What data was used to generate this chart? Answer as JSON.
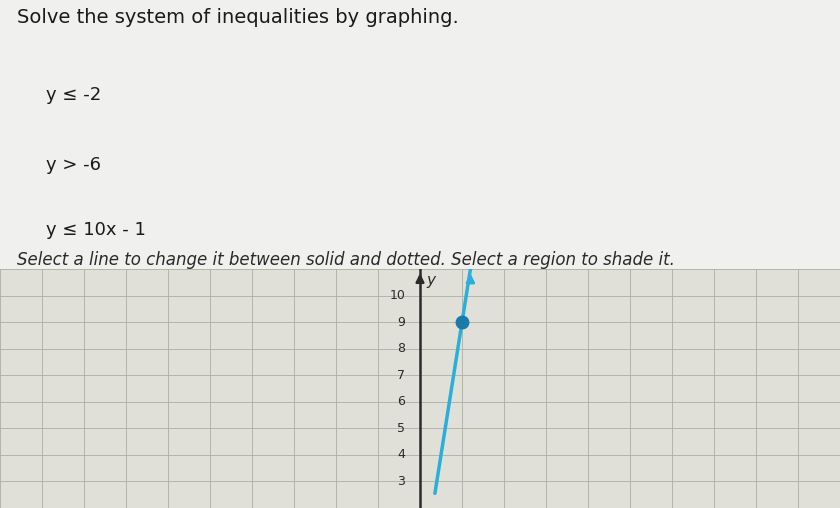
{
  "title": "Solve the system of inequalities by graphing.",
  "inequalities": [
    "y ≤ -2",
    "y > -6",
    "y ≤ 10x - 1"
  ],
  "instruction": "Select a line to change it between solid and dotted. Select a region to shade it.",
  "bg_color": "#f0f0ee",
  "plot_bg": "#e0e0d8",
  "grid_color": "#b0b0a8",
  "axis_color": "#2a2a2a",
  "line_color": "#2ab0d8",
  "dot_color": "#1a7aaa",
  "dot_x": 1,
  "dot_y": 9,
  "xlim": [
    -10,
    10
  ],
  "ylim": [
    2.5,
    11
  ],
  "yticks": [
    3,
    4,
    5,
    6,
    7,
    8,
    9,
    10
  ],
  "line_slope": 10,
  "line_intercept": -1,
  "figsize": [
    8.4,
    5.08
  ],
  "dpi": 100,
  "text_color": "#1a1a1a",
  "italic_text_color": "#2a2a2a",
  "title_fontsize": 14,
  "ineq_fontsize": 13,
  "instr_fontsize": 12
}
